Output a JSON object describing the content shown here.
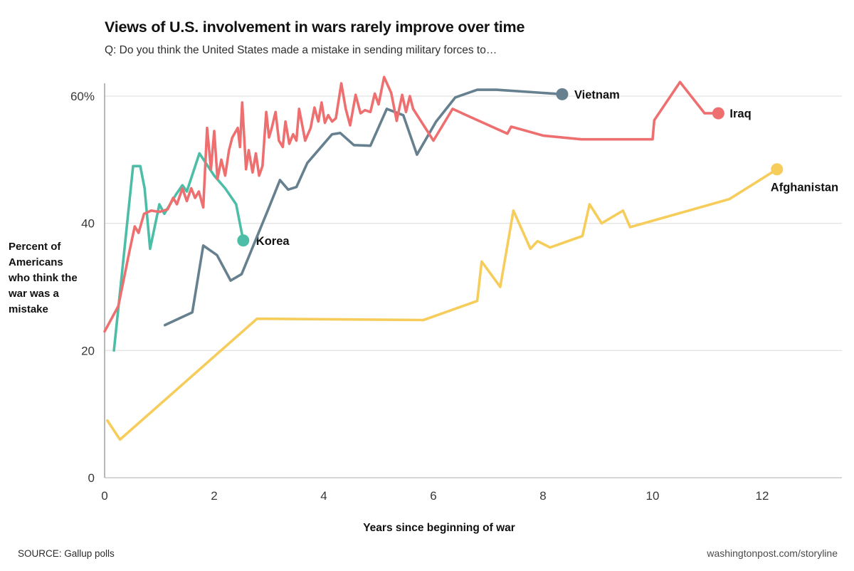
{
  "header": {
    "title": "Views of U.S. involvement in wars rarely improve over time",
    "subtitle": "Q: Do you think the United States made a mistake in sending military forces to…"
  },
  "footer": {
    "source": "SOURCE: Gallup polls",
    "site": "washingtonpost.com/storyline"
  },
  "chart_data": {
    "type": "line",
    "title": "Views of U.S. involvement in wars rarely improve over time",
    "subtitle": "Q: Do you think the United States made a mistake in sending military forces to…",
    "xlabel": "Years since beginning of war",
    "ylabel": "Percent of Americans who think the war was a mistake",
    "xlim": [
      0,
      13.4
    ],
    "ylim": [
      0,
      62
    ],
    "x_tick_values": [
      0,
      2,
      4,
      6,
      8,
      10,
      12
    ],
    "x_tick_labels": [
      "0",
      "2",
      "4",
      "6",
      "8",
      "10",
      "12"
    ],
    "y_tick_values": [
      0,
      20,
      40,
      60
    ],
    "y_tick_labels": [
      "0",
      "20",
      "40",
      "60%"
    ],
    "grid": "horizontal gridlines at 20, 40, 60",
    "legend": "labels with dots at line ends",
    "colors": {
      "korea": "#4cbea7",
      "vietnam": "#66808f",
      "iraq": "#ee6f70",
      "afghanistan": "#f6cd5a",
      "gridline": "#e4e4e4",
      "axis": "#a6a6a6",
      "label_text": "#111111"
    },
    "series": [
      {
        "name": "Korea",
        "color": "#4cbea7",
        "end_dot": [
          2.53,
          37.3
        ],
        "points": [
          [
            0.17,
            20
          ],
          [
            0.52,
            49
          ],
          [
            0.65,
            49
          ],
          [
            0.73,
            45.5
          ],
          [
            0.83,
            36
          ],
          [
            1.0,
            43
          ],
          [
            1.09,
            41.5
          ],
          [
            1.3,
            44.5
          ],
          [
            1.42,
            46
          ],
          [
            1.5,
            45
          ],
          [
            1.73,
            51
          ],
          [
            2.0,
            47.5
          ],
          [
            2.2,
            45.5
          ],
          [
            2.4,
            43
          ],
          [
            2.53,
            37.3
          ]
        ]
      },
      {
        "name": "Vietnam",
        "color": "#66808f",
        "end_dot": [
          8.35,
          60.3
        ],
        "points": [
          [
            1.1,
            24
          ],
          [
            1.6,
            26
          ],
          [
            1.8,
            36.5
          ],
          [
            2.05,
            35
          ],
          [
            2.3,
            31
          ],
          [
            2.5,
            32
          ],
          [
            3.0,
            42.5
          ],
          [
            3.2,
            46.8
          ],
          [
            3.35,
            45.3
          ],
          [
            3.5,
            45.7
          ],
          [
            3.7,
            49.5
          ],
          [
            3.9,
            51.5
          ],
          [
            4.15,
            54
          ],
          [
            4.3,
            54.2
          ],
          [
            4.55,
            52.3
          ],
          [
            4.85,
            52.2
          ],
          [
            5.15,
            58
          ],
          [
            5.45,
            57
          ],
          [
            5.7,
            50.8
          ],
          [
            6.05,
            56
          ],
          [
            6.4,
            59.8
          ],
          [
            6.8,
            61
          ],
          [
            7.15,
            61
          ],
          [
            8.35,
            60.3
          ]
        ]
      },
      {
        "name": "Iraq",
        "color": "#ee6f70",
        "end_dot": [
          11.2,
          57.3
        ],
        "points": [
          [
            0,
            23
          ],
          [
            0.25,
            27
          ],
          [
            0.45,
            35.5
          ],
          [
            0.55,
            39.5
          ],
          [
            0.62,
            38.5
          ],
          [
            0.72,
            41.5
          ],
          [
            0.85,
            42
          ],
          [
            1.0,
            41.8
          ],
          [
            1.15,
            42.2
          ],
          [
            1.25,
            44
          ],
          [
            1.32,
            43
          ],
          [
            1.42,
            45.5
          ],
          [
            1.5,
            43.5
          ],
          [
            1.58,
            45.5
          ],
          [
            1.65,
            44
          ],
          [
            1.72,
            45
          ],
          [
            1.8,
            42.5
          ],
          [
            1.87,
            55
          ],
          [
            1.94,
            48.5
          ],
          [
            2.0,
            54.5
          ],
          [
            2.06,
            47
          ],
          [
            2.13,
            50
          ],
          [
            2.2,
            47.5
          ],
          [
            2.27,
            51.5
          ],
          [
            2.33,
            53.5
          ],
          [
            2.43,
            55
          ],
          [
            2.47,
            52
          ],
          [
            2.51,
            59
          ],
          [
            2.58,
            48.5
          ],
          [
            2.63,
            51.5
          ],
          [
            2.7,
            48
          ],
          [
            2.76,
            51
          ],
          [
            2.82,
            47.5
          ],
          [
            2.88,
            49
          ],
          [
            2.95,
            57.5
          ],
          [
            3.0,
            53.5
          ],
          [
            3.05,
            55
          ],
          [
            3.12,
            57.5
          ],
          [
            3.18,
            53
          ],
          [
            3.25,
            52
          ],
          [
            3.3,
            56
          ],
          [
            3.37,
            52.5
          ],
          [
            3.44,
            54
          ],
          [
            3.5,
            53
          ],
          [
            3.55,
            58
          ],
          [
            3.66,
            53
          ],
          [
            3.76,
            55
          ],
          [
            3.83,
            58.2
          ],
          [
            3.9,
            56
          ],
          [
            3.96,
            59
          ],
          [
            4.02,
            55.8
          ],
          [
            4.08,
            57
          ],
          [
            4.15,
            56
          ],
          [
            4.22,
            56.5
          ],
          [
            4.32,
            62
          ],
          [
            4.4,
            58
          ],
          [
            4.48,
            55.4
          ],
          [
            4.58,
            60.2
          ],
          [
            4.67,
            57.3
          ],
          [
            4.75,
            57.8
          ],
          [
            4.85,
            57.5
          ],
          [
            4.93,
            60.4
          ],
          [
            5.0,
            58.7
          ],
          [
            5.1,
            63
          ],
          [
            5.23,
            60.5
          ],
          [
            5.33,
            56.1
          ],
          [
            5.43,
            60.2
          ],
          [
            5.5,
            57.5
          ],
          [
            5.57,
            60
          ],
          [
            5.63,
            58
          ],
          [
            6.0,
            53
          ],
          [
            6.35,
            58
          ],
          [
            6.6,
            57
          ],
          [
            7.35,
            54.1
          ],
          [
            7.42,
            55.2
          ],
          [
            8.0,
            53.8
          ],
          [
            8.7,
            53.2
          ],
          [
            10.0,
            53.2
          ],
          [
            10.03,
            56.2
          ],
          [
            10.5,
            62.2
          ],
          [
            10.95,
            57.3
          ],
          [
            11.2,
            57.3
          ]
        ]
      },
      {
        "name": "Afghanistan",
        "color": "#f6cd5a",
        "end_dot": [
          12.27,
          48.5
        ],
        "points": [
          [
            0.05,
            9
          ],
          [
            0.28,
            6
          ],
          [
            2.78,
            25
          ],
          [
            5.82,
            24.8
          ],
          [
            6.8,
            27.8
          ],
          [
            6.88,
            34
          ],
          [
            7.22,
            30
          ],
          [
            7.46,
            42
          ],
          [
            7.77,
            36
          ],
          [
            7.9,
            37.2
          ],
          [
            8.13,
            36.2
          ],
          [
            8.72,
            38
          ],
          [
            8.85,
            43
          ],
          [
            9.07,
            40
          ],
          [
            9.46,
            42
          ],
          [
            9.59,
            39.4
          ],
          [
            11.4,
            43.8
          ],
          [
            12.27,
            48.5
          ]
        ]
      }
    ]
  }
}
